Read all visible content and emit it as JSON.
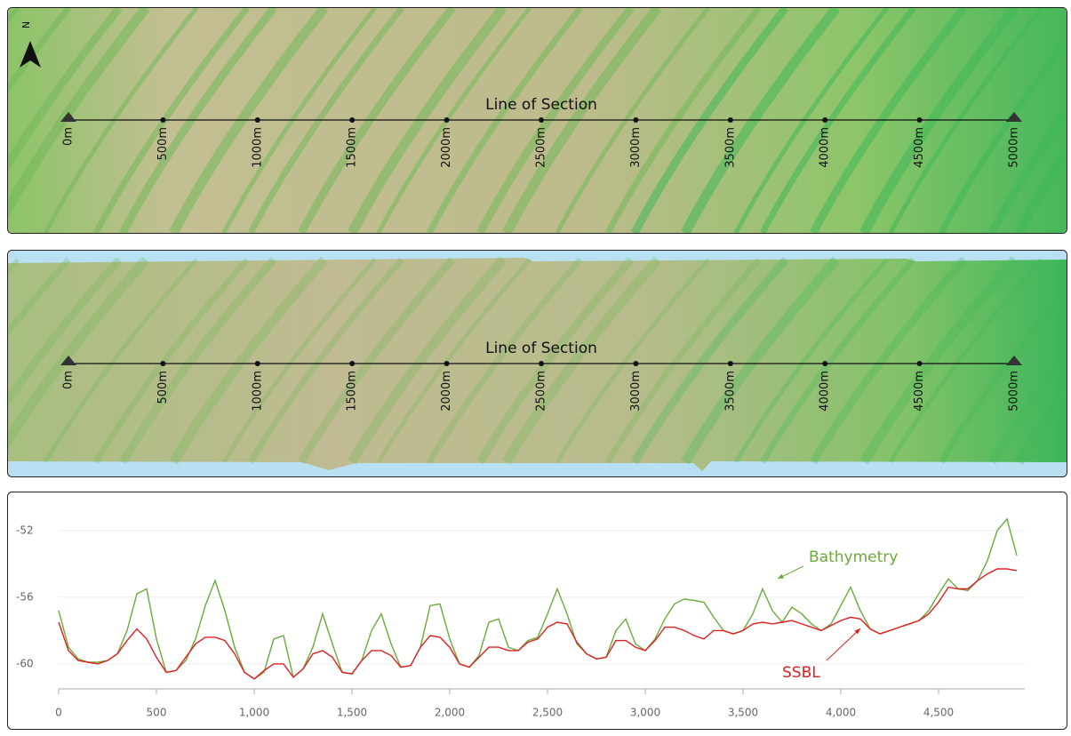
{
  "maps": [
    {
      "north": "N",
      "line_label": "Line of Section",
      "distance_labels": [
        "0m",
        "500m",
        "1000m",
        "1500m",
        "2000m",
        "2500m",
        "3000m",
        "3500m",
        "4000m",
        "4500m",
        "5000m"
      ]
    },
    {
      "line_label": "Line of Section",
      "distance_labels": [
        "0m",
        "500m",
        "1000m",
        "1500m",
        "2000m",
        "2500m",
        "3000m",
        "3500m",
        "4000m",
        "4500m",
        "5000m"
      ]
    }
  ],
  "chart_data": {
    "type": "line",
    "x": [
      0,
      50,
      100,
      150,
      200,
      250,
      300,
      350,
      400,
      450,
      500,
      550,
      600,
      650,
      700,
      750,
      800,
      850,
      900,
      950,
      1000,
      1050,
      1100,
      1150,
      1200,
      1250,
      1300,
      1350,
      1400,
      1450,
      1500,
      1550,
      1600,
      1650,
      1700,
      1750,
      1800,
      1850,
      1900,
      1950,
      2000,
      2050,
      2100,
      2150,
      2200,
      2250,
      2300,
      2350,
      2400,
      2450,
      2500,
      2550,
      2600,
      2650,
      2700,
      2750,
      2800,
      2850,
      2900,
      2950,
      3000,
      3050,
      3100,
      3150,
      3200,
      3250,
      3300,
      3350,
      3400,
      3450,
      3500,
      3550,
      3600,
      3650,
      3700,
      3750,
      3800,
      3850,
      3900,
      3950,
      4000,
      4050,
      4100,
      4150,
      4200,
      4250,
      4300,
      4350,
      4400,
      4450,
      4500,
      4550,
      4600,
      4650,
      4700,
      4750,
      4800,
      4850,
      4900
    ],
    "series": [
      {
        "name": "Bathymetry",
        "color": "#6aab3a",
        "values": [
          -56.8,
          -59.0,
          -59.7,
          -59.9,
          -59.9,
          -59.8,
          -59.4,
          -58.0,
          -55.8,
          -55.5,
          -58.5,
          -60.5,
          -60.4,
          -59.8,
          -58.5,
          -56.5,
          -55.0,
          -56.8,
          -59.0,
          -60.5,
          -60.9,
          -60.5,
          -58.5,
          -58.3,
          -60.8,
          -60.3,
          -59.0,
          -57.0,
          -58.8,
          -60.5,
          -60.6,
          -59.8,
          -58.0,
          -57.0,
          -58.8,
          -60.2,
          -60.1,
          -59.0,
          -56.5,
          -56.4,
          -58.5,
          -60.0,
          -60.2,
          -59.5,
          -57.5,
          -57.3,
          -59.0,
          -59.2,
          -58.6,
          -58.4,
          -57.0,
          -55.5,
          -57.0,
          -58.8,
          -59.4,
          -59.7,
          -59.6,
          -58.0,
          -57.3,
          -58.8,
          -59.2,
          -58.5,
          -57.3,
          -56.4,
          -56.1,
          -56.2,
          -56.3,
          -57.2,
          -58.0,
          -58.2,
          -58.0,
          -57.0,
          -55.5,
          -56.8,
          -57.5,
          -56.6,
          -57.0,
          -57.6,
          -58.0,
          -57.6,
          -56.5,
          -55.4,
          -56.8,
          -57.9,
          -58.2,
          -58.0,
          -57.8,
          -57.6,
          -57.4,
          -56.8,
          -55.8,
          -54.9,
          -55.5,
          -55.6,
          -55.0,
          -53.8,
          -52.0,
          -51.3,
          -53.5
        ]
      },
      {
        "name": "SSBL",
        "color": "#e02020",
        "values": [
          -57.5,
          -59.2,
          -59.8,
          -59.9,
          -60.0,
          -59.8,
          -59.4,
          -58.6,
          -57.9,
          -58.5,
          -59.6,
          -60.5,
          -60.4,
          -59.6,
          -58.8,
          -58.4,
          -58.4,
          -58.6,
          -59.4,
          -60.5,
          -60.9,
          -60.4,
          -60.0,
          -60.0,
          -60.8,
          -60.3,
          -59.4,
          -59.2,
          -59.6,
          -60.5,
          -60.6,
          -59.8,
          -59.2,
          -59.2,
          -59.5,
          -60.2,
          -60.1,
          -59.0,
          -58.3,
          -58.4,
          -59.0,
          -60.0,
          -60.2,
          -59.6,
          -59.0,
          -59.0,
          -59.2,
          -59.2,
          -58.7,
          -58.5,
          -57.8,
          -57.5,
          -57.6,
          -58.7,
          -59.4,
          -59.7,
          -59.6,
          -58.6,
          -58.6,
          -59.0,
          -59.2,
          -58.6,
          -57.8,
          -57.8,
          -58.0,
          -58.3,
          -58.5,
          -58.0,
          -58.0,
          -58.2,
          -58.0,
          -57.6,
          -57.5,
          -57.6,
          -57.5,
          -57.4,
          -57.6,
          -57.8,
          -58.0,
          -57.7,
          -57.4,
          -57.2,
          -57.3,
          -57.9,
          -58.2,
          -58.0,
          -57.8,
          -57.6,
          -57.4,
          -57.0,
          -56.3,
          -55.4,
          -55.5,
          -55.5,
          -55.0,
          -54.6,
          -54.3,
          -54.3,
          -54.4
        ]
      }
    ],
    "xlim": [
      0,
      4940
    ],
    "xticks": [
      0,
      500,
      {
        "value": 1000,
        "label": "1,000"
      },
      {
        "value": 1500,
        "label": "1,500"
      },
      {
        "value": 2000,
        "label": "2,000"
      },
      {
        "value": 2500,
        "label": "2,500"
      },
      {
        "value": 3000,
        "label": "3,000"
      },
      {
        "value": 3500,
        "label": "3,500"
      },
      {
        "value": 4000,
        "label": "4,000"
      },
      {
        "value": 4500,
        "label": "4,500"
      }
    ],
    "ylim": [
      -61.5,
      -50.5
    ],
    "yticks": [
      -52,
      -56,
      -60
    ],
    "grid": true
  }
}
